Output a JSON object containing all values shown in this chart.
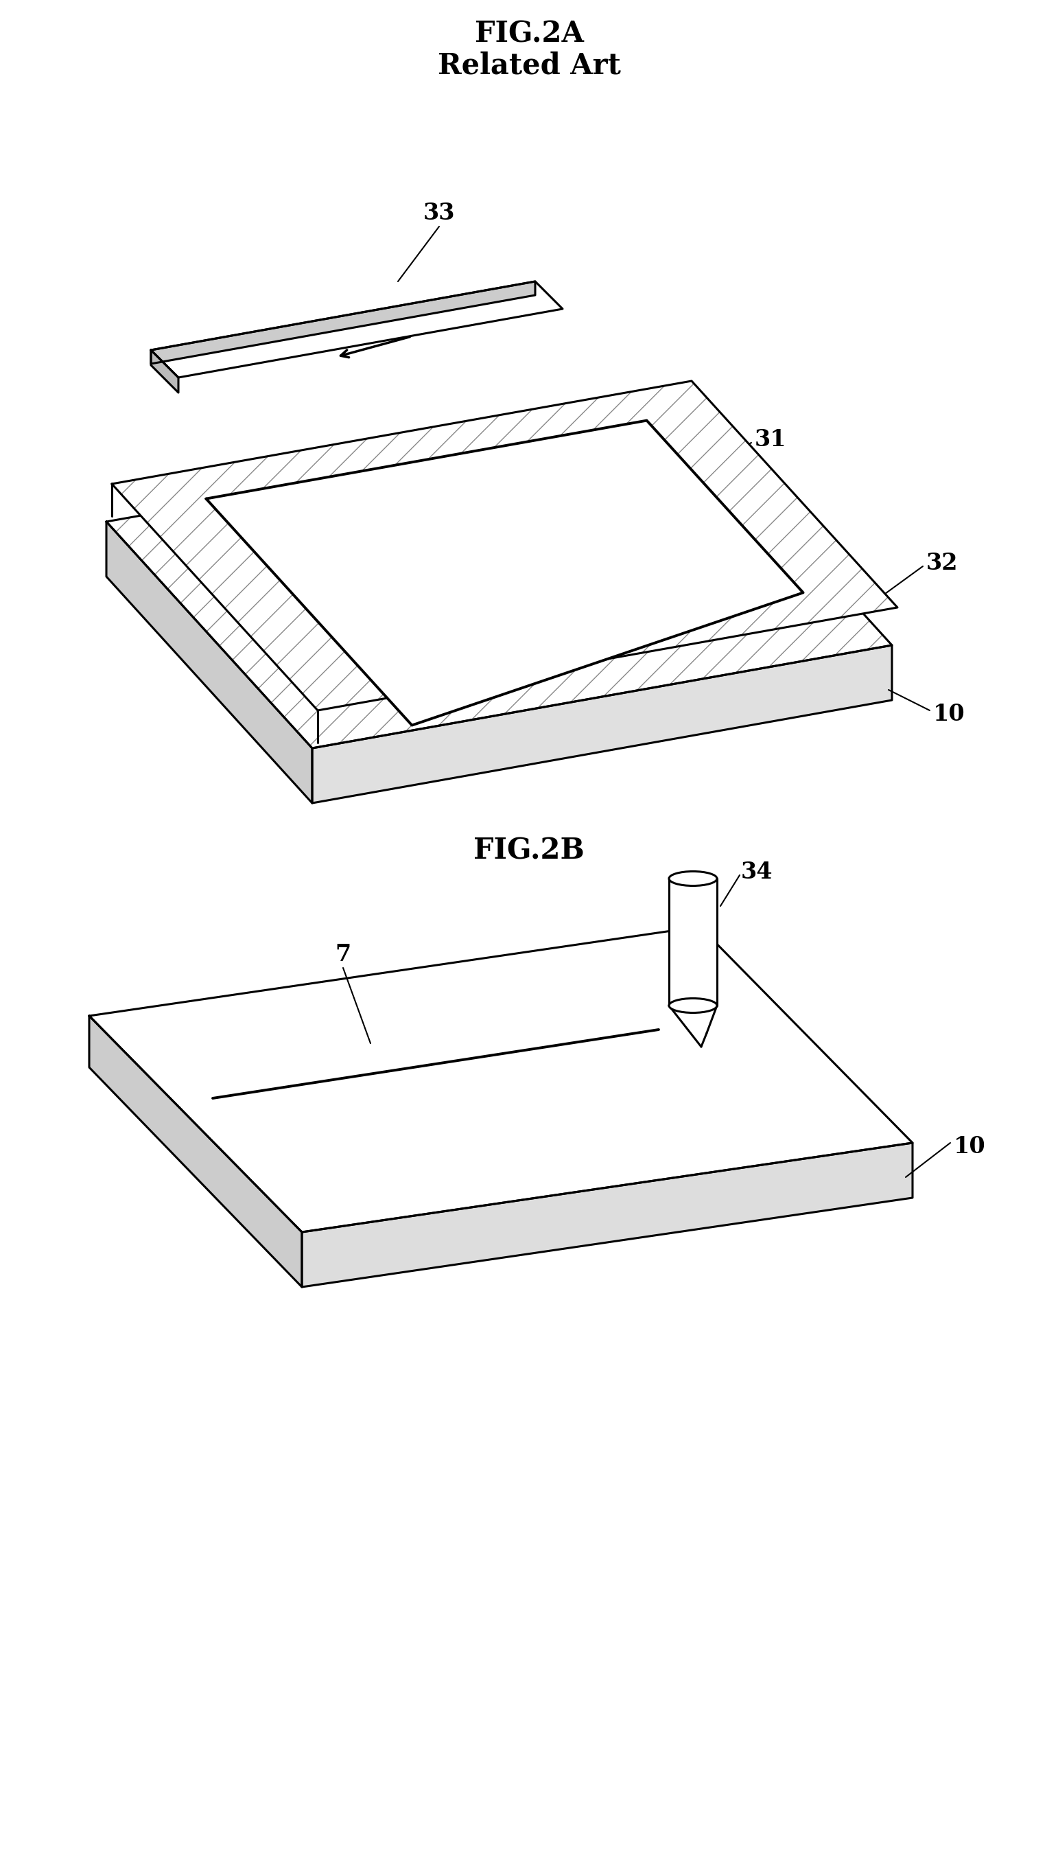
{
  "title_2a": "FIG.2A",
  "subtitle_2a": "Related Art",
  "title_2b": "FIG.2B",
  "bg_color": "#ffffff",
  "line_color": "#000000",
  "label_33": "33",
  "label_31": "31",
  "label_32": "32",
  "label_10a": "10",
  "label_7": "7",
  "label_34": "34",
  "label_10b": "10",
  "title_fontsize": 30,
  "subtitle_fontsize": 30,
  "label_fontsize": 24
}
